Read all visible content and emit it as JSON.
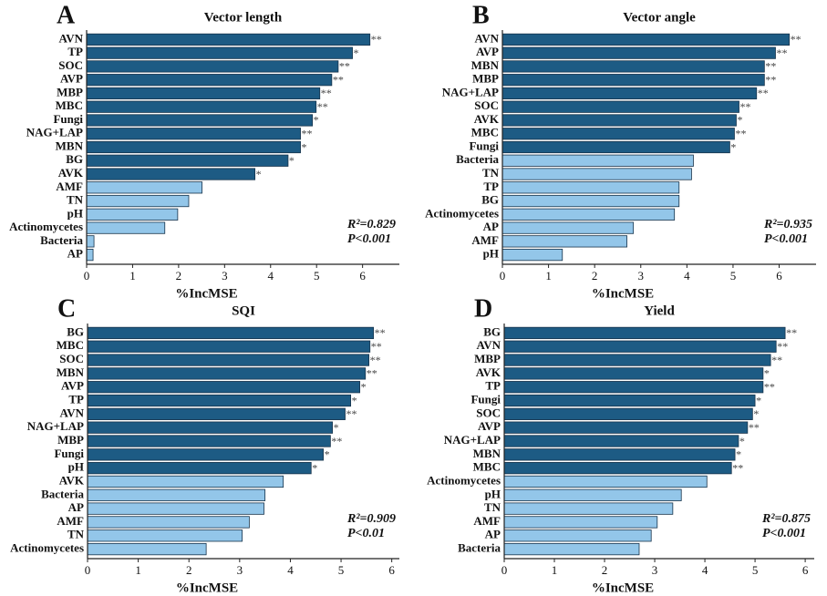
{
  "chart_data": [
    {
      "type": "bar",
      "orientation": "horizontal",
      "panel_label": "A",
      "title": "Vector length",
      "x_label": "%IncMSE",
      "categories": [
        "AVN",
        "TP",
        "SOC",
        "AVP",
        "MBP",
        "MBC",
        "Fungi",
        "NAG+LAP",
        "MBN",
        "BG",
        "AVK",
        "AMF",
        "TN",
        "pH",
        "Actinomycetes",
        "Bacteria",
        "AP"
      ],
      "values": [
        6.16,
        5.78,
        5.47,
        5.33,
        5.07,
        4.99,
        4.91,
        4.65,
        4.65,
        4.38,
        3.66,
        2.51,
        2.22,
        1.98,
        1.7,
        0.16,
        0.14
      ],
      "significance": [
        "**",
        "*",
        "**",
        "**",
        "**",
        "**",
        "*",
        "**",
        "*",
        "*",
        "*",
        null,
        null,
        null,
        null,
        null,
        null
      ],
      "xlim": [
        0,
        6.8
      ],
      "xticks": [
        0,
        1,
        2,
        3,
        4,
        5,
        6
      ],
      "annotations": [
        "R²=0.829",
        "P<0.001"
      ],
      "colors": {
        "significant": "#1d5b84",
        "other": "#93c6e9"
      }
    },
    {
      "type": "bar",
      "orientation": "horizontal",
      "panel_label": "B",
      "title": "Vector angle",
      "x_label": "%IncMSE",
      "categories": [
        "AVN",
        "AVP",
        "MBN",
        "MBP",
        "NAG+LAP",
        "SOC",
        "AVK",
        "MBC",
        "Fungi",
        "Bacteria",
        "TN",
        "TP",
        "BG",
        "Actinomycetes",
        "AP",
        "AMF",
        "pH"
      ],
      "values": [
        6.22,
        5.92,
        5.68,
        5.68,
        5.51,
        5.13,
        5.07,
        5.03,
        4.93,
        4.14,
        4.1,
        3.83,
        3.83,
        3.73,
        2.84,
        2.7,
        1.3
      ],
      "significance": [
        "**",
        "**",
        "**",
        "**",
        "**",
        "**",
        "*",
        "**",
        "*",
        null,
        null,
        null,
        null,
        null,
        null,
        null,
        null
      ],
      "xlim": [
        0,
        6.8
      ],
      "xticks": [
        0,
        1,
        2,
        3,
        4,
        5,
        6
      ],
      "annotations": [
        "R²=0.935",
        "P<0.001"
      ],
      "colors": {
        "significant": "#1d5b84",
        "other": "#93c6e9"
      }
    },
    {
      "type": "bar",
      "orientation": "horizontal",
      "panel_label": "C",
      "title": "SQI",
      "x_label": "%IncMSE",
      "categories": [
        "BG",
        "MBC",
        "SOC",
        "MBN",
        "AVP",
        "TP",
        "AVN",
        "NAG+LAP",
        "MBP",
        "Fungi",
        "pH",
        "AVK",
        "Bacteria",
        "AP",
        "AMF",
        "TN",
        "Actinomycetes"
      ],
      "values": [
        5.64,
        5.57,
        5.55,
        5.48,
        5.37,
        5.19,
        5.08,
        4.83,
        4.79,
        4.65,
        4.41,
        3.86,
        3.5,
        3.48,
        3.19,
        3.05,
        2.34
      ],
      "significance": [
        "**",
        "**",
        "**",
        "**",
        "*",
        "*",
        "**",
        "*",
        "**",
        "*",
        "*",
        null,
        null,
        null,
        null,
        null,
        null
      ],
      "xlim": [
        0,
        6.15
      ],
      "xticks": [
        0,
        1,
        2,
        3,
        4,
        5,
        6
      ],
      "annotations": [
        "R²=0.909",
        "P<0.01"
      ],
      "colors": {
        "significant": "#1d5b84",
        "other": "#93c6e9"
      }
    },
    {
      "type": "bar",
      "orientation": "horizontal",
      "panel_label": "D",
      "title": "Yield",
      "x_label": "%IncMSE",
      "categories": [
        "BG",
        "AVN",
        "MBP",
        "AVK",
        "TP",
        "Fungi",
        "SOC",
        "AVP",
        "NAG+LAP",
        "MBN",
        "MBC",
        "Actinomycetes",
        "pH",
        "TN",
        "AMF",
        "AP",
        "Bacteria"
      ],
      "values": [
        5.6,
        5.42,
        5.31,
        5.16,
        5.16,
        5.0,
        4.95,
        4.85,
        4.67,
        4.6,
        4.53,
        4.04,
        3.53,
        3.36,
        3.05,
        2.93,
        2.69
      ],
      "significance": [
        "**",
        "**",
        "**",
        "*",
        "**",
        "*",
        "*",
        "**",
        "*",
        "*",
        "**",
        null,
        null,
        null,
        null,
        null,
        null
      ],
      "xlim": [
        0,
        6.18
      ],
      "xticks": [
        0,
        1,
        2,
        3,
        4,
        5,
        6
      ],
      "annotations": [
        "R²=0.875",
        "P<0.001"
      ],
      "colors": {
        "significant": "#1d5b84",
        "other": "#93c6e9"
      }
    }
  ]
}
